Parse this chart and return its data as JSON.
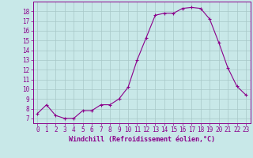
{
  "x": [
    0,
    1,
    2,
    3,
    4,
    5,
    6,
    7,
    8,
    9,
    10,
    11,
    12,
    13,
    14,
    15,
    16,
    17,
    18,
    19,
    20,
    21,
    22,
    23
  ],
  "y": [
    7.5,
    8.4,
    7.3,
    7.0,
    7.0,
    7.8,
    7.8,
    8.4,
    8.4,
    9.0,
    10.2,
    13.0,
    15.3,
    17.6,
    17.8,
    17.8,
    18.3,
    18.4,
    18.3,
    17.2,
    14.8,
    12.2,
    10.3,
    9.4
  ],
  "line_color": "#8b008b",
  "marker": "+",
  "marker_color": "#8b008b",
  "background_color": "#c8e8e8",
  "grid_color": "#a8c8c8",
  "xlabel": "Windchill (Refroidissement éolien,°C)",
  "xlim": [
    -0.5,
    23.5
  ],
  "ylim": [
    6.5,
    19.0
  ],
  "yticks": [
    7,
    8,
    9,
    10,
    11,
    12,
    13,
    14,
    15,
    16,
    17,
    18
  ],
  "xticks": [
    0,
    1,
    2,
    3,
    4,
    5,
    6,
    7,
    8,
    9,
    10,
    11,
    12,
    13,
    14,
    15,
    16,
    17,
    18,
    19,
    20,
    21,
    22,
    23
  ],
  "tick_color": "#8b008b",
  "axis_color": "#8b008b",
  "label_fontsize": 6,
  "tick_fontsize": 5.5
}
